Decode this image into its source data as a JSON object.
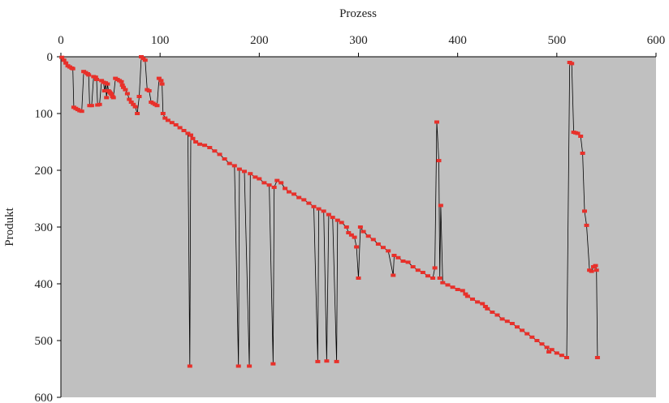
{
  "chart_data": {
    "type": "scatter",
    "xlabel": "Prozess",
    "ylabel": "Produkt",
    "xlim": [
      0,
      600
    ],
    "ylim": [
      0,
      600
    ],
    "y_inverted": true,
    "x_axis_position": "top",
    "xticks": [
      "0",
      "100",
      "200",
      "300",
      "400",
      "500",
      "600"
    ],
    "yticks": [
      "0",
      "100",
      "200",
      "300",
      "400",
      "500",
      "600"
    ],
    "grid": false,
    "plot_background": "#c0c0c0",
    "series": [
      {
        "color": "#e8302a",
        "line_color": "#000000",
        "points": [
          [
            1,
            1
          ],
          [
            3,
            6
          ],
          [
            5,
            11
          ],
          [
            7,
            16
          ],
          [
            9,
            18
          ],
          [
            11,
            20
          ],
          [
            12,
            21
          ],
          [
            13,
            89
          ],
          [
            15,
            91
          ],
          [
            17,
            93
          ],
          [
            19,
            95
          ],
          [
            21,
            96
          ],
          [
            23,
            26
          ],
          [
            25,
            28
          ],
          [
            27,
            30
          ],
          [
            28,
            32
          ],
          [
            29,
            86
          ],
          [
            31,
            86
          ],
          [
            33,
            35
          ],
          [
            35,
            36
          ],
          [
            36,
            40
          ],
          [
            37,
            85
          ],
          [
            39,
            84
          ],
          [
            41,
            42
          ],
          [
            43,
            45
          ],
          [
            44,
            60
          ],
          [
            45,
            46
          ],
          [
            46,
            72
          ],
          [
            47,
            48
          ],
          [
            48,
            60
          ],
          [
            49,
            62
          ],
          [
            50,
            64
          ],
          [
            51,
            66
          ],
          [
            52,
            70
          ],
          [
            53,
            72
          ],
          [
            55,
            38
          ],
          [
            57,
            40
          ],
          [
            59,
            42
          ],
          [
            61,
            44
          ],
          [
            62,
            50
          ],
          [
            63,
            54
          ],
          [
            65,
            58
          ],
          [
            67,
            65
          ],
          [
            69,
            75
          ],
          [
            71,
            80
          ],
          [
            73,
            84
          ],
          [
            75,
            88
          ],
          [
            77,
            100
          ],
          [
            79,
            70
          ],
          [
            81,
            0
          ],
          [
            83,
            3
          ],
          [
            85,
            6
          ],
          [
            87,
            58
          ],
          [
            89,
            60
          ],
          [
            91,
            80
          ],
          [
            93,
            82
          ],
          [
            95,
            84
          ],
          [
            97,
            86
          ],
          [
            99,
            38
          ],
          [
            101,
            42
          ],
          [
            102,
            48
          ],
          [
            103,
            100
          ],
          [
            105,
            108
          ],
          [
            108,
            112
          ],
          [
            112,
            116
          ],
          [
            116,
            120
          ],
          [
            120,
            125
          ],
          [
            124,
            130
          ],
          [
            128,
            135
          ],
          [
            130,
            545
          ],
          [
            131,
            138
          ],
          [
            133,
            144
          ],
          [
            136,
            150
          ],
          [
            140,
            154
          ],
          [
            145,
            156
          ],
          [
            150,
            160
          ],
          [
            155,
            166
          ],
          [
            160,
            172
          ],
          [
            165,
            180
          ],
          [
            170,
            188
          ],
          [
            175,
            192
          ],
          [
            179,
            545
          ],
          [
            180,
            198
          ],
          [
            185,
            202
          ],
          [
            190,
            545
          ],
          [
            191,
            206
          ],
          [
            196,
            212
          ],
          [
            200,
            215
          ],
          [
            205,
            222
          ],
          [
            210,
            226
          ],
          [
            214,
            541
          ],
          [
            215,
            230
          ],
          [
            218,
            218
          ],
          [
            222,
            222
          ],
          [
            226,
            232
          ],
          [
            230,
            238
          ],
          [
            235,
            242
          ],
          [
            240,
            248
          ],
          [
            245,
            252
          ],
          [
            250,
            258
          ],
          [
            255,
            264
          ],
          [
            259,
            537
          ],
          [
            260,
            268
          ],
          [
            265,
            272
          ],
          [
            268,
            536
          ],
          [
            270,
            278
          ],
          [
            274,
            283
          ],
          [
            278,
            537
          ],
          [
            279,
            288
          ],
          [
            283,
            292
          ],
          [
            288,
            300
          ],
          [
            290,
            310
          ],
          [
            293,
            314
          ],
          [
            296,
            318
          ],
          [
            298,
            335
          ],
          [
            300,
            390
          ],
          [
            302,
            300
          ],
          [
            305,
            308
          ],
          [
            310,
            316
          ],
          [
            315,
            322
          ],
          [
            320,
            330
          ],
          [
            325,
            336
          ],
          [
            330,
            342
          ],
          [
            335,
            385
          ],
          [
            336,
            350
          ],
          [
            340,
            354
          ],
          [
            345,
            360
          ],
          [
            350,
            362
          ],
          [
            355,
            370
          ],
          [
            360,
            376
          ],
          [
            365,
            380
          ],
          [
            370,
            386
          ],
          [
            375,
            390
          ],
          [
            377,
            372
          ],
          [
            379,
            115
          ],
          [
            381,
            183
          ],
          [
            382,
            390
          ],
          [
            383,
            262
          ],
          [
            385,
            398
          ],
          [
            390,
            402
          ],
          [
            395,
            406
          ],
          [
            400,
            410
          ],
          [
            405,
            412
          ],
          [
            408,
            418
          ],
          [
            410,
            422
          ],
          [
            415,
            427
          ],
          [
            420,
            432
          ],
          [
            425,
            435
          ],
          [
            428,
            440
          ],
          [
            430,
            444
          ],
          [
            435,
            450
          ],
          [
            440,
            455
          ],
          [
            445,
            462
          ],
          [
            450,
            466
          ],
          [
            455,
            470
          ],
          [
            460,
            476
          ],
          [
            465,
            482
          ],
          [
            470,
            488
          ],
          [
            475,
            494
          ],
          [
            480,
            500
          ],
          [
            485,
            506
          ],
          [
            490,
            512
          ],
          [
            492,
            520
          ],
          [
            495,
            516
          ],
          [
            500,
            522
          ],
          [
            505,
            526
          ],
          [
            510,
            530
          ],
          [
            513,
            10
          ],
          [
            515,
            12
          ],
          [
            517,
            133
          ],
          [
            519,
            134
          ],
          [
            521,
            135
          ],
          [
            524,
            140
          ],
          [
            526,
            170
          ],
          [
            528,
            272
          ],
          [
            530,
            297
          ],
          [
            533,
            376
          ],
          [
            535,
            378
          ],
          [
            537,
            370
          ],
          [
            539,
            368
          ],
          [
            540,
            376
          ],
          [
            541,
            530
          ]
        ]
      }
    ]
  }
}
